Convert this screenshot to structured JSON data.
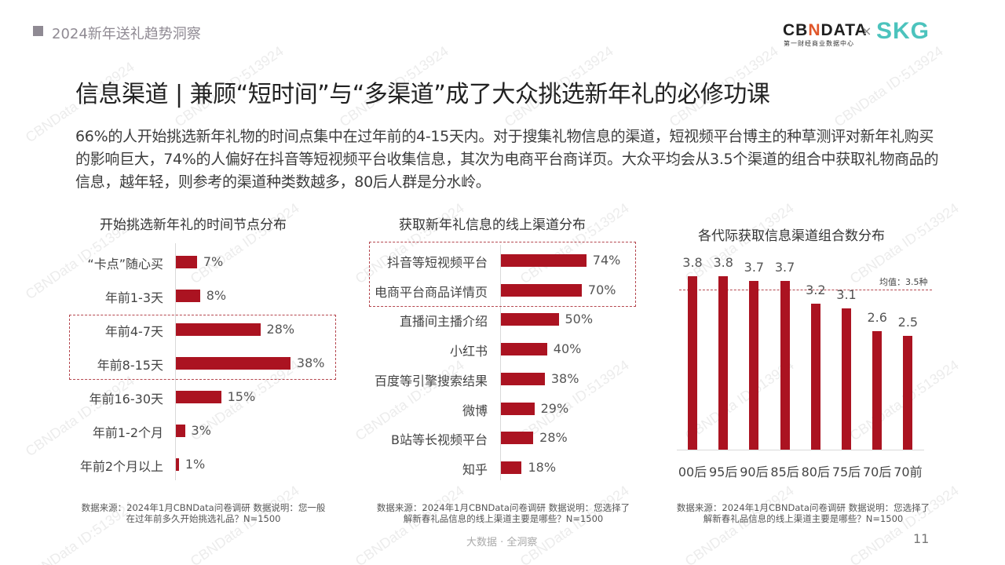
{
  "header": {
    "section_title": "2024新年送礼趋势洞察",
    "logo_cbndata_pre": "CB",
    "logo_cbndata_n": "N",
    "logo_cbndata_post": "DATA",
    "logo_cbndata_sub": "第一财经商业数据中心",
    "logo_separator": "×",
    "logo_partner": "SKG"
  },
  "main_title": "信息渠道 | 兼顾“短时间”与“多渠道”成了大众挑选新年礼的必修功课",
  "summary": "66%的人开始挑选新年礼物的时间点集中在过年前的4-15天内。对于搜集礼物信息的渠道，短视频平台博主的种草测评对新年礼购买的影响巨大，74%的人偏好在抖音等短视频平台收集信息，其次为电商平台商详页。大众平均会从3.5个渠道的组合中获取礼物商品的信息，越年轻，则参考的渠道种类数越多，80后人群是分水岭。",
  "colors": {
    "bar": "#ab1321",
    "highlight_border": "#b5474f",
    "partner_logo": "#4cc3bd",
    "header_gray": "#8f8a93"
  },
  "chart_data": [
    {
      "type": "bar",
      "orientation": "horizontal",
      "title": "开始挑选新年礼的时间节点分布",
      "categories": [
        "“卡点”随心买",
        "年前1-3天",
        "年前4-7天",
        "年前8-15天",
        "年前16-30天",
        "年前1-2个月",
        "年前2个月以上"
      ],
      "values": [
        7,
        8,
        28,
        38,
        15,
        3,
        1
      ],
      "labels": [
        "7%",
        "8%",
        "28%",
        "38%",
        "15%",
        "3%",
        "1%"
      ],
      "unit": "%",
      "highlighted": [
        "年前4-7天",
        "年前8-15天"
      ],
      "note": "数据来源：2024年1月CBNData问卷调研  数据说明：您一般在过年前多久开始挑选礼品？N=1500"
    },
    {
      "type": "bar",
      "orientation": "horizontal",
      "title": "获取新年礼信息的线上渠道分布",
      "categories": [
        "抖音等短视频平台",
        "电商平台商品详情页",
        "直播间主播介绍",
        "小红书",
        "百度等引擎搜索结果",
        "微博",
        "B站等长视频平台",
        "知乎"
      ],
      "values": [
        74,
        70,
        50,
        40,
        38,
        29,
        28,
        18
      ],
      "labels": [
        "74%",
        "70%",
        "50%",
        "40%",
        "38%",
        "29%",
        "28%",
        "18%"
      ],
      "unit": "%",
      "highlighted": [
        "抖音等短视频平台",
        "电商平台商品详情页"
      ],
      "note": "数据来源：2024年1月CBNData问卷调研 数据说明：您选择了解新春礼品信息的线上渠道主要是哪些？N=1500"
    },
    {
      "type": "bar",
      "orientation": "vertical",
      "title": "各代际获取信息渠道组合数分布",
      "categories": [
        "00后",
        "95后",
        "90后",
        "85后",
        "80后",
        "75后",
        "70后",
        "70前"
      ],
      "values": [
        3.8,
        3.8,
        3.7,
        3.7,
        3.2,
        3.1,
        2.6,
        2.5
      ],
      "labels": [
        "3.8",
        "3.8",
        "3.7",
        "3.7",
        "3.2",
        "3.1",
        "2.6",
        "2.5"
      ],
      "reference_line": {
        "value": 3.5,
        "label": "均值：3.5种"
      },
      "note": "数据来源：2024年1月CBNData问卷调研 数据说明：您选择了解新春礼品信息的线上渠道主要是哪些？N=1500"
    }
  ],
  "footer": {
    "center": "大数据 · 全洞察",
    "page_number": "11"
  },
  "watermark": "CBNData ID:513924"
}
